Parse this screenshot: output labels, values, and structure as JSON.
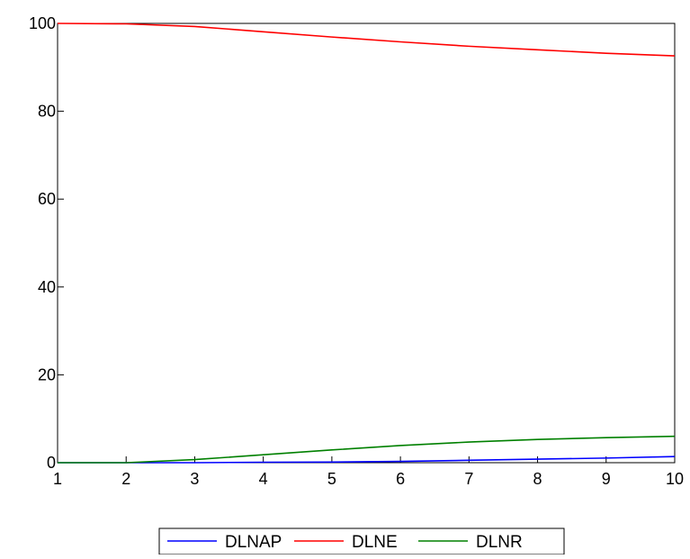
{
  "chart_data": {
    "type": "line",
    "title": "",
    "xlabel": "",
    "ylabel": "",
    "x": [
      1,
      2,
      3,
      4,
      5,
      6,
      7,
      8,
      9,
      10
    ],
    "xticks": [
      "1",
      "2",
      "3",
      "4",
      "5",
      "6",
      "7",
      "8",
      "9",
      "10"
    ],
    "yticks": [
      "0",
      "20",
      "40",
      "60",
      "80",
      "100"
    ],
    "xlim": [
      1,
      10
    ],
    "ylim": [
      0,
      100
    ],
    "grid": false,
    "legend_position": "bottom-center",
    "series": [
      {
        "name": "DLNAP",
        "color": "#0000ff",
        "values": [
          0.0,
          0.0,
          0.0,
          0.1,
          0.15,
          0.3,
          0.55,
          0.8,
          1.05,
          1.4
        ]
      },
      {
        "name": "DLNE",
        "color": "#ff0000",
        "values": [
          100.0,
          99.9,
          99.3,
          98.1,
          96.9,
          95.8,
          94.8,
          94.0,
          93.2,
          92.6
        ]
      },
      {
        "name": "DLNR",
        "color": "#008000",
        "values": [
          0.0,
          0.0,
          0.7,
          1.8,
          2.9,
          3.9,
          4.7,
          5.3,
          5.7,
          6.0
        ]
      }
    ]
  }
}
